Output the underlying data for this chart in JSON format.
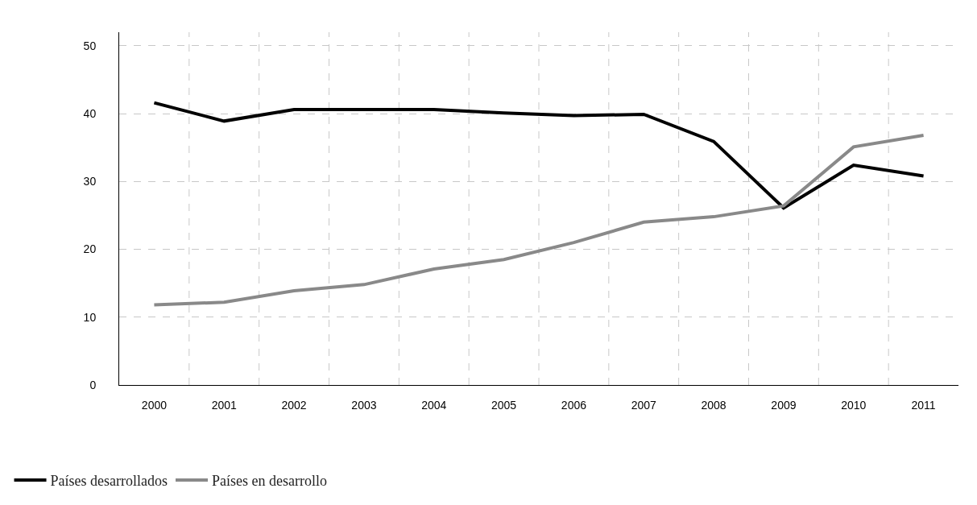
{
  "chart_data": {
    "type": "line",
    "categories": [
      "2000",
      "2001",
      "2002",
      "2003",
      "2004",
      "2005",
      "2006",
      "2007",
      "2008",
      "2009",
      "2010",
      "2011"
    ],
    "series": [
      {
        "name": "Países desarrollados",
        "color": "#000000",
        "values": [
          41.6,
          38.9,
          40.6,
          40.6,
          40.6,
          40.1,
          39.7,
          39.9,
          35.9,
          26.1,
          32.4,
          30.8
        ]
      },
      {
        "name": "Países en desarrollo",
        "color": "#898989",
        "values": [
          11.8,
          12.2,
          13.9,
          14.8,
          17.1,
          18.5,
          21.0,
          24.0,
          24.8,
          26.4,
          35.1,
          36.8
        ]
      }
    ],
    "ylim": [
      0,
      52
    ],
    "yticks": [
      0,
      10,
      20,
      30,
      40,
      50
    ],
    "grid": true,
    "legend": "bottom left",
    "marker": "none",
    "line_style": "solid"
  }
}
